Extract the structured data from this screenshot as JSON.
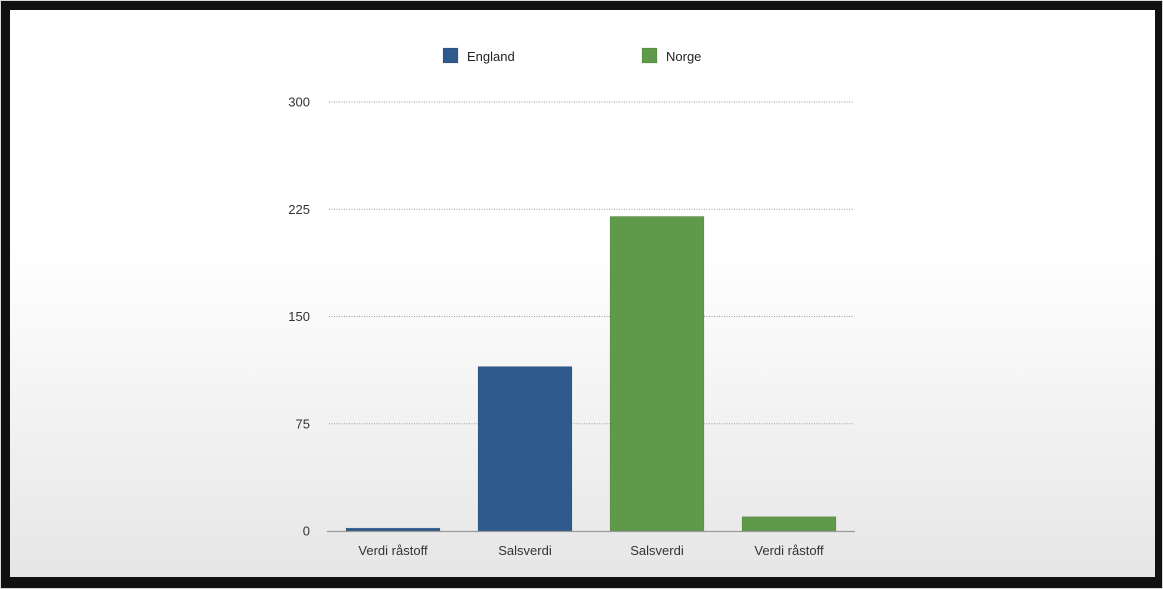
{
  "chart_data": {
    "type": "bar",
    "categories": [
      "Verdi råstoff",
      "Salsverdi",
      "Salsverdi",
      "Verdi råstoff"
    ],
    "values": [
      2,
      115,
      220,
      10
    ],
    "bar_series": [
      "England",
      "England",
      "Norge",
      "Norge"
    ],
    "series": [
      {
        "name": "England",
        "color": "#2e5a8e"
      },
      {
        "name": "Norge",
        "color": "#5e9a49"
      }
    ],
    "yticks": [
      0,
      75,
      150,
      225,
      300
    ],
    "ylim": [
      0,
      300
    ],
    "grid": true,
    "legend_position": "top"
  }
}
